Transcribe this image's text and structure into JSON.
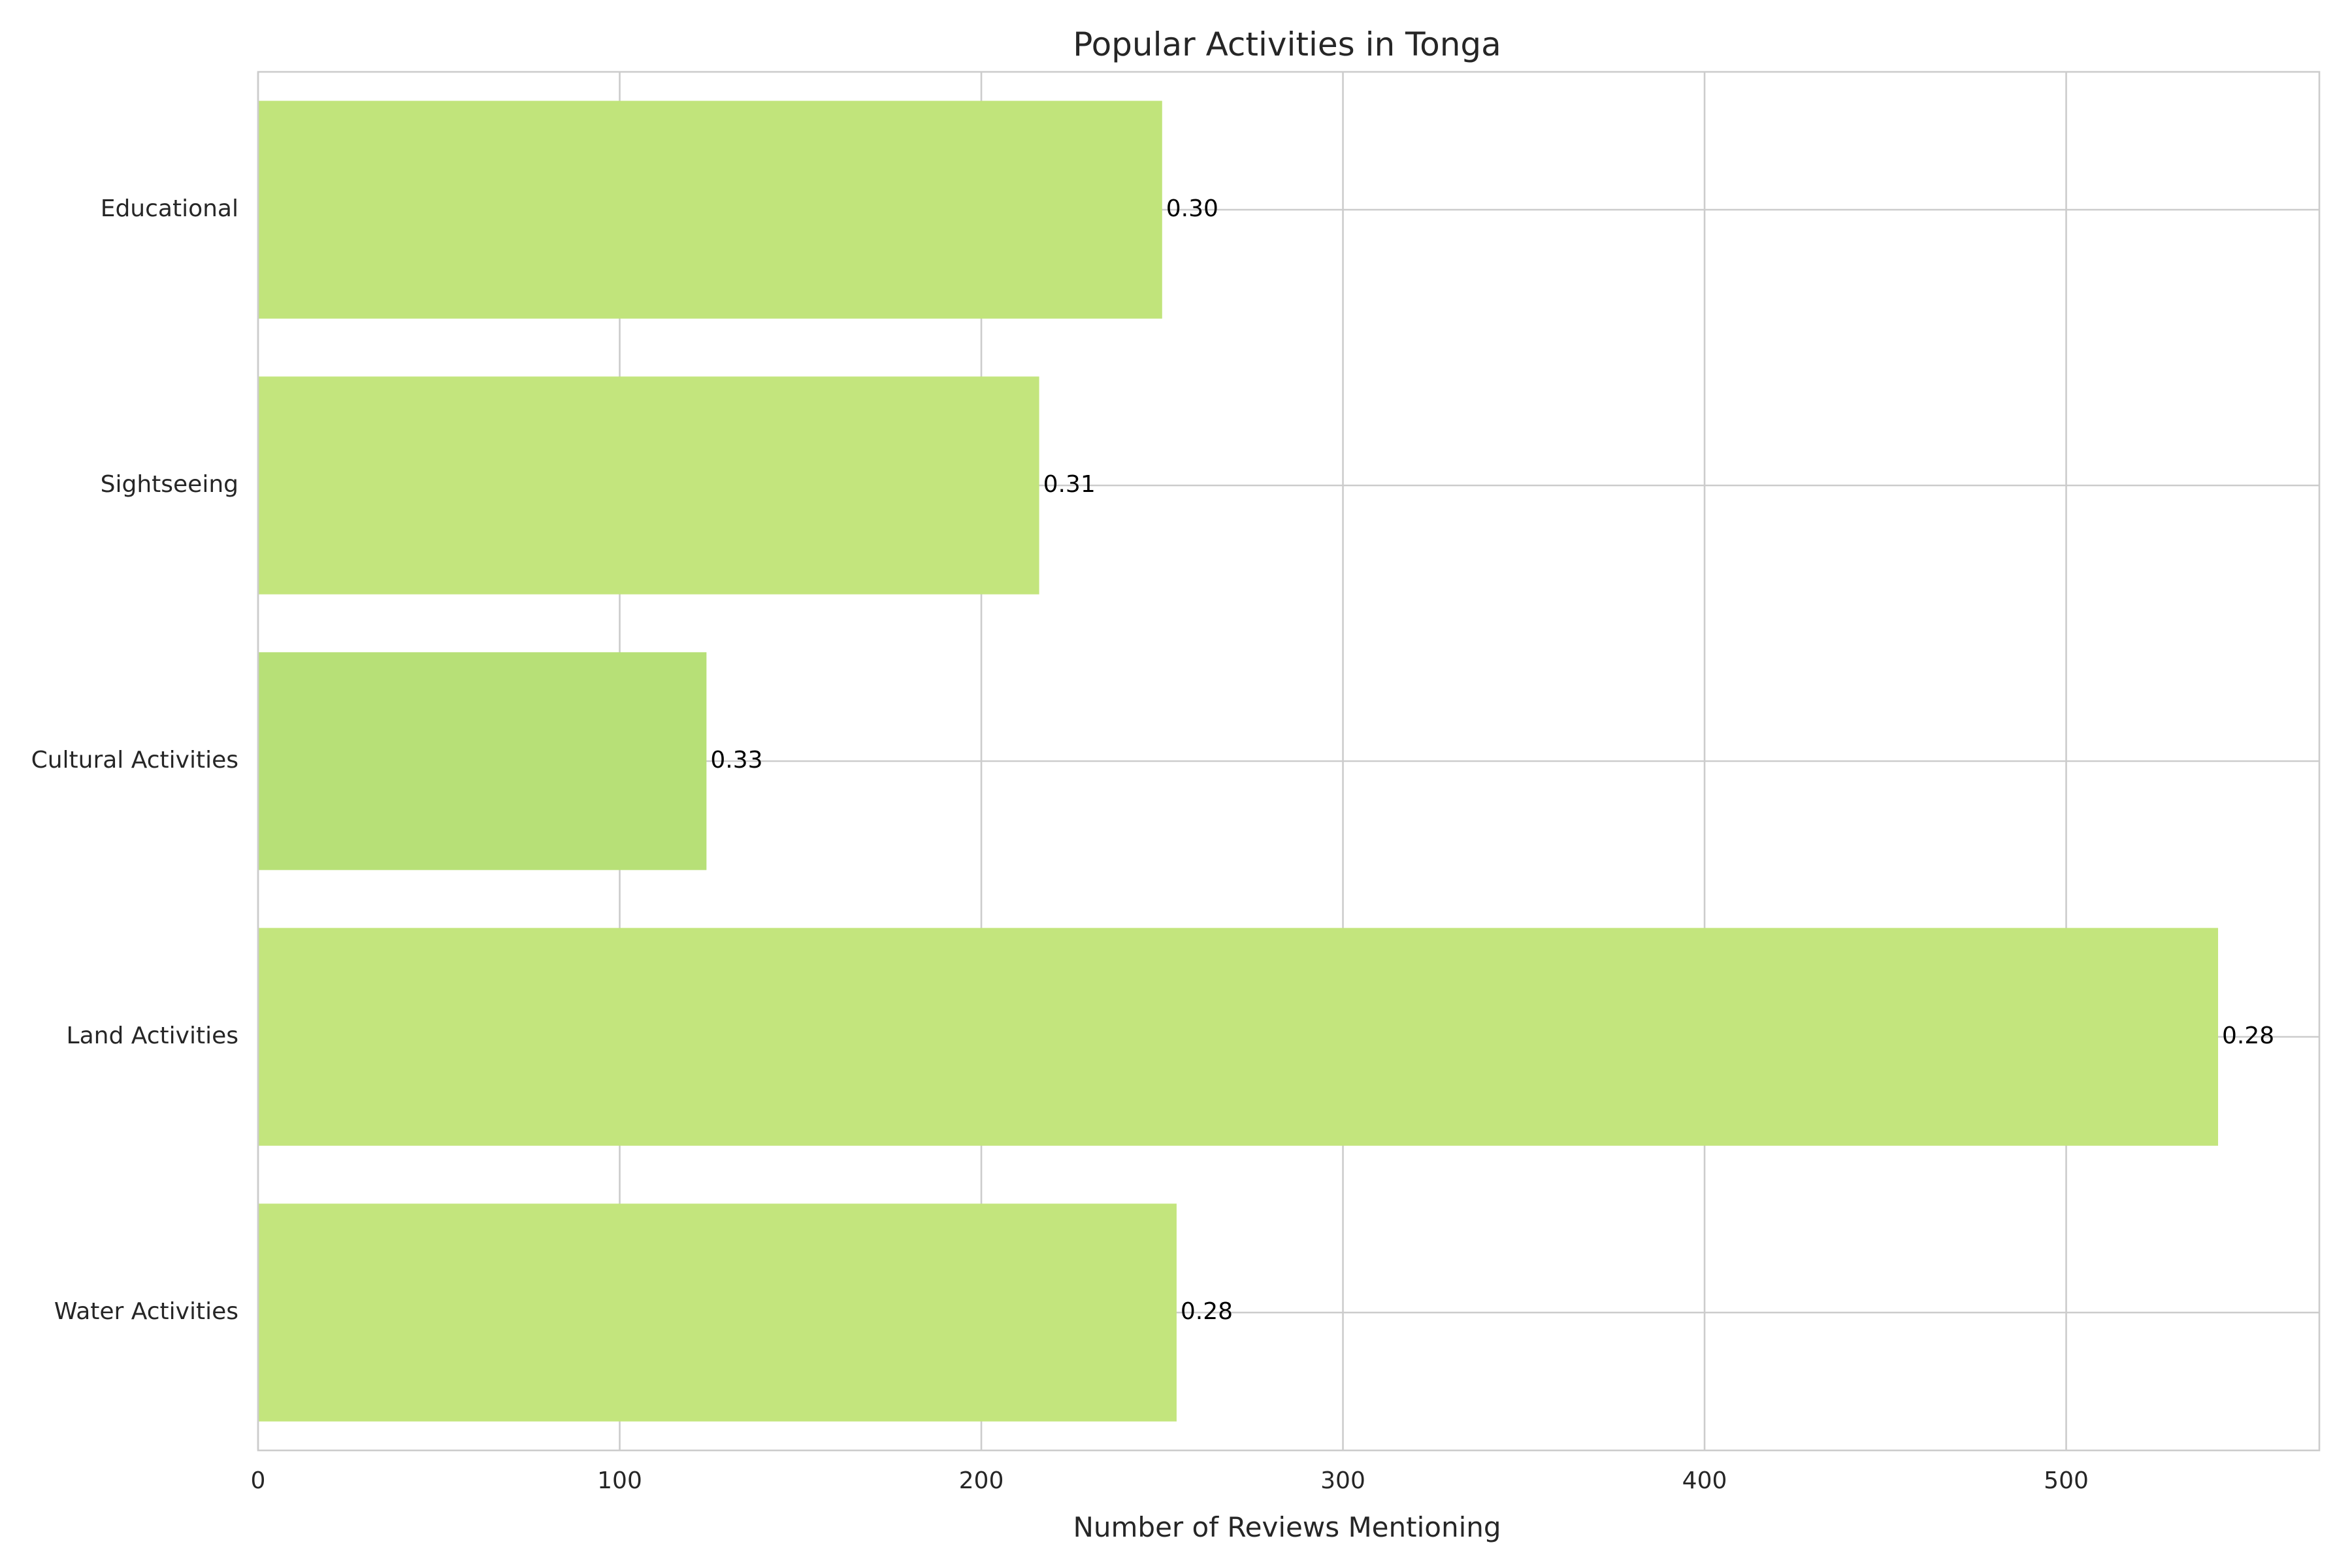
{
  "chart_data": {
    "type": "bar",
    "orientation": "horizontal",
    "title": "Popular Activities in Tonga",
    "xlabel": "Number of Reviews Mentioning",
    "ylabel": "",
    "categories": [
      "Water Activities",
      "Land Activities",
      "Cultural Activities",
      "Sightseeing",
      "Educational"
    ],
    "values": [
      254,
      542,
      124,
      216,
      250
    ],
    "labels": [
      "0.28",
      "0.28",
      "0.33",
      "0.31",
      "0.30"
    ],
    "bar_colors": [
      "#c3e57d",
      "#c3e57d",
      "#b7e077",
      "#c3e57d",
      "#c1e47b"
    ],
    "xlim": [
      0,
      570
    ],
    "xticks": [
      0,
      100,
      200,
      300,
      400,
      500
    ],
    "grid": true,
    "legend": "none"
  }
}
